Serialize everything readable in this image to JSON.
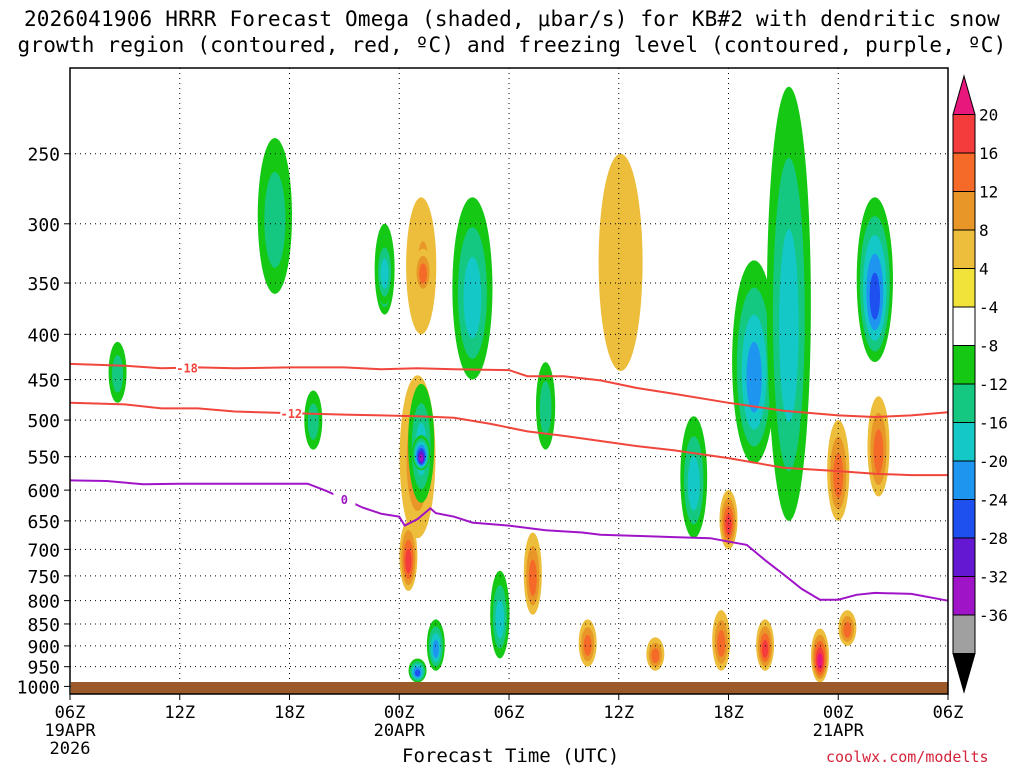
{
  "title": "2026041906 HRRR Forecast Omega (shaded, μbar/s) for KB#2 with dendritic snow\ngrowth region (contoured, red, ºC) and freezing level (contoured, purple, ºC)",
  "watermark": "coolwx.com/modelts",
  "chart_data": {
    "type": "heatmap",
    "title": "2026041906 HRRR Forecast Omega (shaded, μbar/s) for KB#2 with dendritic snow growth region (contoured, red, ºC) and freezing level (contoured, purple, ºC)",
    "xlabel": "Forecast Time (UTC)",
    "ylabel": "",
    "x_ticks": [
      {
        "label": "06Z",
        "date": "19APR",
        "year": "2026"
      },
      {
        "label": "12Z",
        "date": "",
        "year": ""
      },
      {
        "label": "18Z",
        "date": "",
        "year": ""
      },
      {
        "label": "00Z",
        "date": "20APR",
        "year": ""
      },
      {
        "label": "06Z",
        "date": "",
        "year": ""
      },
      {
        "label": "12Z",
        "date": "",
        "year": ""
      },
      {
        "label": "18Z",
        "date": "",
        "year": ""
      },
      {
        "label": "00Z",
        "date": "21APR",
        "year": ""
      },
      {
        "label": "06Z",
        "date": "",
        "year": ""
      }
    ],
    "x_hours": [
      0,
      6,
      12,
      18,
      24,
      30,
      36,
      42,
      48
    ],
    "y_ticks": [
      250,
      300,
      350,
      400,
      450,
      500,
      550,
      600,
      650,
      700,
      750,
      800,
      850,
      900,
      950,
      1000
    ],
    "ylim": [
      1020,
      200
    ],
    "y_scale": "log",
    "grid": true,
    "colorbar": {
      "labels": [
        "20",
        "16",
        "12",
        "8",
        "4",
        "-4",
        "-8",
        "-12",
        "-16",
        "-20",
        "-24",
        "-28",
        "-32",
        "-36"
      ],
      "colors": [
        "#e8177b",
        "#f53c3c",
        "#f56a28",
        "#e89628",
        "#ecbe3c",
        "#f2e33a",
        "#ffffff",
        "#14c814",
        "#14c882",
        "#14c8c8",
        "#1e96f0",
        "#1e50f0",
        "#6418d2",
        "#a014c8",
        "#a0a0a0",
        "#000000"
      ]
    },
    "contours": [
      {
        "name": "-18",
        "color": "#f0463c",
        "label_hour": 6.4,
        "points": [
          [
            0,
            432
          ],
          [
            3,
            434
          ],
          [
            5,
            437
          ],
          [
            7,
            436
          ],
          [
            9,
            437
          ],
          [
            12,
            436
          ],
          [
            15,
            436
          ],
          [
            17,
            438
          ],
          [
            19,
            437
          ],
          [
            21,
            438
          ],
          [
            24,
            439
          ],
          [
            25,
            446
          ],
          [
            27,
            446
          ],
          [
            29,
            451
          ],
          [
            31,
            460
          ],
          [
            33,
            467
          ],
          [
            36,
            478
          ],
          [
            39,
            488
          ],
          [
            42,
            494
          ],
          [
            44,
            496
          ],
          [
            46,
            494
          ],
          [
            48,
            490
          ]
        ]
      },
      {
        "name": "-12",
        "color": "#f0463c",
        "label_hour": 12.1,
        "points": [
          [
            0,
            478
          ],
          [
            3,
            480
          ],
          [
            5,
            485
          ],
          [
            7,
            485
          ],
          [
            9,
            489
          ],
          [
            12,
            491
          ],
          [
            15,
            493
          ],
          [
            17,
            494
          ],
          [
            19,
            495
          ],
          [
            21,
            497
          ],
          [
            23,
            505
          ],
          [
            25,
            515
          ],
          [
            27,
            521
          ],
          [
            29,
            528
          ],
          [
            31,
            535
          ],
          [
            33,
            541
          ],
          [
            36,
            552
          ],
          [
            39,
            566
          ],
          [
            42,
            571
          ],
          [
            44,
            575
          ],
          [
            46,
            577
          ],
          [
            48,
            577
          ]
        ]
      },
      {
        "name": "0",
        "color": "#a014c8",
        "label_hour": 15.0,
        "points": [
          [
            0,
            585
          ],
          [
            2,
            586
          ],
          [
            4,
            591
          ],
          [
            6,
            590
          ],
          [
            8,
            590
          ],
          [
            10,
            590
          ],
          [
            12,
            590
          ],
          [
            13,
            590
          ],
          [
            14,
            601
          ],
          [
            15,
            614
          ],
          [
            16,
            628
          ],
          [
            17,
            638
          ],
          [
            18,
            643
          ],
          [
            18.3,
            658
          ],
          [
            19,
            647
          ],
          [
            19.7,
            629
          ],
          [
            20,
            637
          ],
          [
            21,
            643
          ],
          [
            22,
            653
          ],
          [
            24,
            658
          ],
          [
            26,
            666
          ],
          [
            28,
            670
          ],
          [
            29,
            674
          ],
          [
            31,
            676
          ],
          [
            33,
            678
          ],
          [
            35,
            680
          ],
          [
            37,
            692
          ],
          [
            38,
            720
          ],
          [
            39,
            747
          ],
          [
            40,
            776
          ],
          [
            41,
            798
          ],
          [
            42,
            798
          ],
          [
            43,
            788
          ],
          [
            44,
            784
          ],
          [
            46,
            786
          ],
          [
            48,
            800
          ]
        ]
      }
    ],
    "omega_cells": [
      {
        "hour": 2.6,
        "p_top": 408,
        "p_bot": 478,
        "value": -8
      },
      {
        "hour": 11.2,
        "p_top": 240,
        "p_bot": 360,
        "value": -8
      },
      {
        "hour": 13.3,
        "p_top": 463,
        "p_bot": 540,
        "value": -8
      },
      {
        "hour": 17.2,
        "p_top": 300,
        "p_bot": 380,
        "value": -16
      },
      {
        "hour": 17.2,
        "p_top": 310,
        "p_bot": 370,
        "value": -12
      },
      {
        "hour": 19.0,
        "p_top": 445,
        "p_bot": 680,
        "value": 8
      },
      {
        "hour": 19.2,
        "p_top": 280,
        "p_bot": 400,
        "value": 4
      },
      {
        "hour": 19.3,
        "p_top": 300,
        "p_bot": 370,
        "value": 8
      },
      {
        "hour": 19.3,
        "p_top": 320,
        "p_bot": 360,
        "value": 12
      },
      {
        "hour": 19.2,
        "p_top": 455,
        "p_bot": 620,
        "value": -12
      },
      {
        "hour": 19.2,
        "p_top": 520,
        "p_bot": 570,
        "value": -28
      },
      {
        "hour": 18.5,
        "p_top": 650,
        "p_bot": 780,
        "value": 16
      },
      {
        "hour": 22.0,
        "p_top": 280,
        "p_bot": 450,
        "value": -12
      },
      {
        "hour": 26.0,
        "p_top": 430,
        "p_bot": 540,
        "value": -8
      },
      {
        "hour": 30.1,
        "p_top": 250,
        "p_bot": 440,
        "value": 4
      },
      {
        "hour": 34.1,
        "p_top": 495,
        "p_bot": 680,
        "value": -12
      },
      {
        "hour": 36.0,
        "p_top": 600,
        "p_bot": 700,
        "value": 16
      },
      {
        "hour": 37.4,
        "p_top": 330,
        "p_bot": 560,
        "value": -16
      },
      {
        "hour": 39.3,
        "p_top": 210,
        "p_bot": 650,
        "value": -12
      },
      {
        "hour": 42.0,
        "p_top": 500,
        "p_bot": 650,
        "value": 12
      },
      {
        "hour": 44.0,
        "p_top": 280,
        "p_bot": 430,
        "value": -20
      },
      {
        "hour": 44.2,
        "p_top": 470,
        "p_bot": 610,
        "value": 12
      },
      {
        "hour": 23.5,
        "p_top": 740,
        "p_bot": 930,
        "value": -12
      },
      {
        "hour": 25.3,
        "p_top": 670,
        "p_bot": 830,
        "value": 12
      },
      {
        "hour": 28.3,
        "p_top": 840,
        "p_bot": 950,
        "value": 12
      },
      {
        "hour": 32.0,
        "p_top": 880,
        "p_bot": 960,
        "value": 12
      },
      {
        "hour": 35.6,
        "p_top": 820,
        "p_bot": 960,
        "value": 12
      },
      {
        "hour": 38.0,
        "p_top": 840,
        "p_bot": 960,
        "value": 16
      },
      {
        "hour": 41.0,
        "p_top": 860,
        "p_bot": 990,
        "value": 20
      },
      {
        "hour": 42.5,
        "p_top": 820,
        "p_bot": 900,
        "value": 12
      },
      {
        "hour": 20.0,
        "p_top": 840,
        "p_bot": 960,
        "value": -16
      },
      {
        "hour": 19.0,
        "p_top": 930,
        "p_bot": 990,
        "value": -20
      }
    ]
  }
}
